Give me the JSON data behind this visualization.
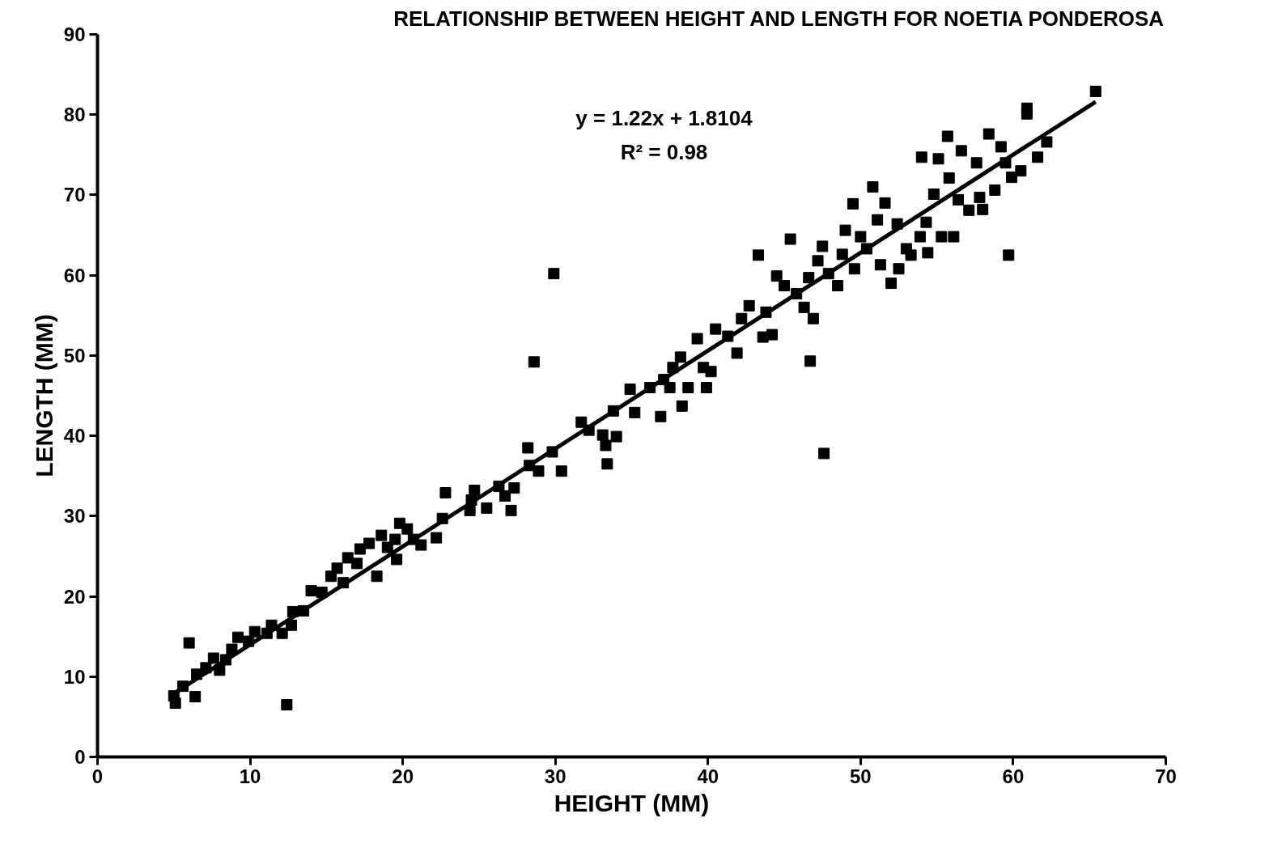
{
  "chart_data": {
    "type": "scatter",
    "title": "RELATIONSHIP BETWEEN HEIGHT AND LENGTH FOR NOETIA PONDEROSA",
    "xlabel": "HEIGHT (MM)",
    "ylabel": "LENGTH (MM)",
    "annotations": [
      "y = 1.22x + 1.8104",
      "R² = 0.98"
    ],
    "xlim": [
      0,
      70
    ],
    "ylim": [
      0,
      90
    ],
    "xticks": [
      0,
      10,
      20,
      30,
      40,
      50,
      60,
      70
    ],
    "yticks": [
      0,
      10,
      20,
      30,
      40,
      50,
      60,
      70,
      80,
      90
    ],
    "grid": false,
    "marker": "square",
    "series": [
      {
        "color": "#000000",
        "x": [
          5.1,
          5.0,
          6.4,
          5.6,
          6.0,
          6.5,
          7.1,
          7.6,
          8.0,
          8.4,
          8.8,
          9.2,
          9.9,
          10.3,
          11.1,
          11.4,
          12.1,
          12.4,
          12.7,
          12.8,
          13.5,
          14.0,
          14.7,
          15.3,
          15.7,
          16.1,
          16.4,
          17.0,
          17.2,
          17.8,
          18.3,
          18.6,
          19.0,
          19.5,
          19.6,
          19.8,
          20.3,
          20.7,
          21.2,
          22.2,
          22.6,
          22.8,
          24.4,
          24.5,
          24.7,
          25.5,
          26.3,
          26.7,
          27.1,
          27.3,
          28.2,
          28.3,
          28.6,
          28.9,
          29.8,
          29.9,
          30.4,
          31.7,
          32.2,
          33.1,
          33.3,
          33.4,
          33.8,
          34.0,
          34.9,
          35.2,
          36.2,
          36.9,
          37.1,
          37.5,
          37.7,
          38.2,
          38.3,
          38.7,
          39.3,
          39.7,
          39.9,
          40.2,
          40.5,
          41.3,
          41.9,
          42.2,
          42.7,
          43.3,
          43.6,
          43.8,
          44.2,
          44.5,
          45.0,
          45.4,
          45.8,
          46.3,
          46.6,
          46.7,
          46.9,
          47.2,
          47.5,
          47.6,
          47.9,
          48.5,
          48.8,
          49.0,
          49.5,
          49.6,
          50.0,
          50.4,
          50.8,
          51.1,
          51.3,
          51.6,
          52.0,
          52.4,
          52.5,
          53.0,
          53.3,
          53.9,
          54.0,
          54.3,
          54.4,
          54.8,
          55.1,
          55.3,
          55.7,
          55.8,
          56.1,
          56.4,
          56.6,
          57.1,
          57.6,
          57.8,
          58.0,
          58.4,
          58.8,
          59.2,
          59.5,
          59.7,
          59.9,
          60.5,
          60.9,
          60.9,
          61.6,
          62.2,
          65.4
        ],
        "values": [
          6.7,
          7.6,
          7.5,
          8.8,
          14.2,
          10.3,
          11.1,
          12.3,
          10.8,
          12.1,
          13.4,
          14.9,
          14.4,
          15.6,
          15.4,
          16.4,
          15.4,
          6.5,
          16.4,
          18.1,
          18.2,
          20.7,
          20.5,
          22.5,
          23.5,
          21.7,
          24.8,
          24.1,
          25.9,
          26.6,
          22.5,
          27.6,
          26.1,
          27.1,
          24.6,
          29.1,
          28.4,
          27.1,
          26.4,
          27.3,
          29.7,
          32.9,
          30.7,
          32.0,
          33.2,
          31.0,
          33.7,
          32.5,
          30.7,
          33.5,
          38.5,
          36.3,
          49.2,
          35.6,
          38.0,
          60.2,
          35.6,
          41.7,
          40.7,
          40.1,
          38.8,
          36.5,
          43.1,
          39.9,
          45.8,
          42.9,
          46.0,
          42.4,
          47.0,
          46.0,
          48.5,
          49.8,
          43.7,
          46.0,
          52.1,
          48.5,
          46.0,
          48.0,
          53.3,
          52.4,
          50.3,
          54.6,
          56.2,
          62.5,
          52.3,
          55.4,
          52.6,
          59.9,
          58.7,
          64.5,
          57.7,
          56.0,
          59.7,
          49.3,
          54.6,
          61.8,
          63.6,
          37.8,
          60.2,
          58.7,
          62.6,
          65.6,
          68.9,
          60.8,
          64.8,
          63.3,
          71.0,
          66.9,
          61.3,
          69.0,
          59.0,
          66.4,
          60.8,
          63.3,
          62.5,
          64.8,
          74.7,
          66.6,
          62.8,
          70.1,
          74.5,
          64.8,
          77.3,
          72.1,
          64.8,
          69.4,
          75.5,
          68.1,
          74.0,
          69.7,
          68.2,
          77.6,
          70.6,
          76.0,
          74.0,
          62.5,
          72.2,
          73.0,
          80.1,
          80.8,
          74.7,
          76.6,
          82.9
        ]
      },
      {
        "type": "line",
        "color": "#000000",
        "marker": "none",
        "x": [
          5.0,
          65.4
        ],
        "values": [
          7.9,
          81.6
        ]
      }
    ]
  }
}
